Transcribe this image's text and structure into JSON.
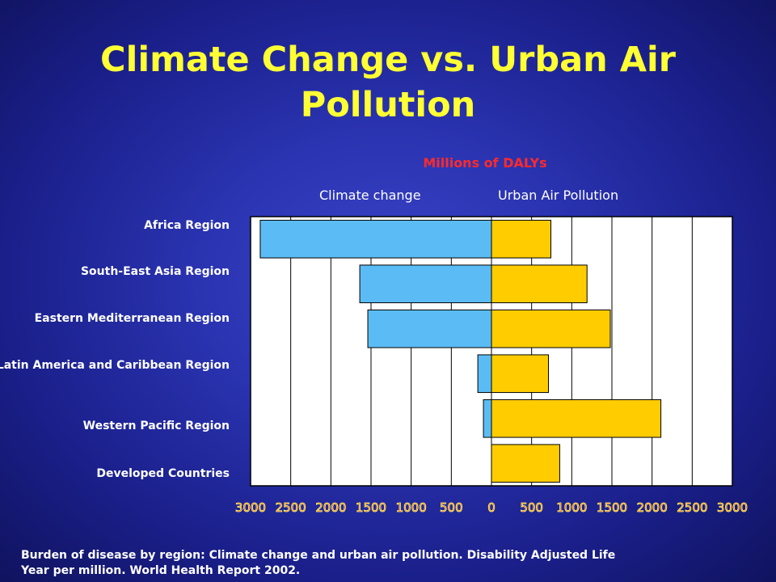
{
  "slide": {
    "title": "Climate Change vs. Urban Air Pollution",
    "caption": "Burden of disease by region: Climate change and urban air pollution.  Disability Adjusted Life Year per million. World Health Report 2002."
  },
  "chart_data": {
    "type": "bar",
    "orientation": "horizontal",
    "layout": "diverging",
    "units_label": "Millions of DALYs",
    "categories": [
      "Africa Region",
      "South-East Asia Region",
      "Eastern Mediterranean Region",
      "Latin America and Caribbean Region",
      "Western Pacific Region",
      "Developed Countries"
    ],
    "series": [
      {
        "name": "Climate change",
        "direction": "left",
        "color": "#5bbcf5",
        "values": [
          2880,
          1640,
          1540,
          170,
          100,
          0
        ]
      },
      {
        "name": "Urban Air Pollution",
        "direction": "right",
        "color": "#ffcc00",
        "values": [
          740,
          1190,
          1480,
          710,
          2110,
          850
        ]
      }
    ],
    "xlim": [
      -3000,
      3000
    ],
    "x_ticks": [
      "3000",
      "2500",
      "2000",
      "1500",
      "1000",
      "500",
      "0",
      "500",
      "1000",
      "1500",
      "2000",
      "2500",
      "3000"
    ],
    "grid": "vertical",
    "legend": "none"
  }
}
